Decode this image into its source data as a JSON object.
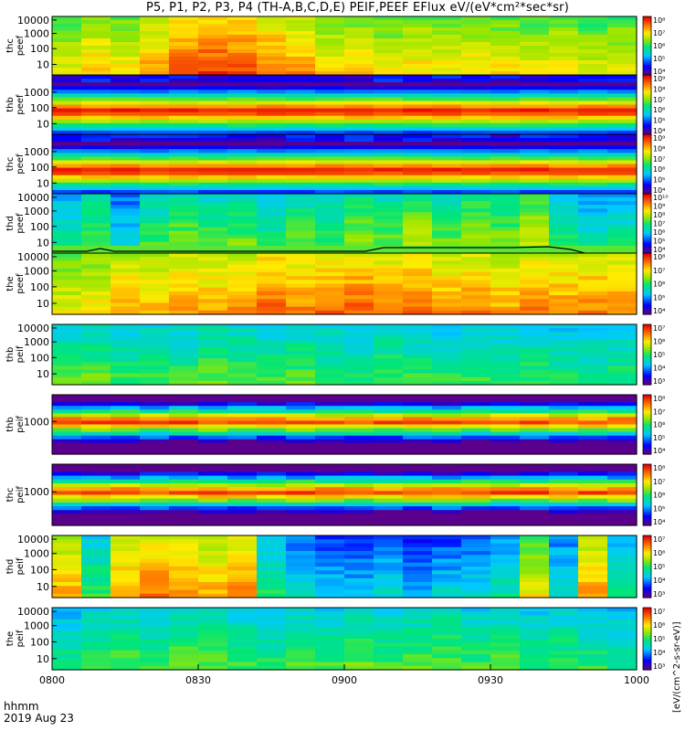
{
  "title": "P5, P1, P2, P3, P4 (TH-A,B,C,D,E) PEIF,PEEF EFlux eV/(eV*cm²*sec*sr)",
  "time_axis": {
    "label_line1": "hhmm",
    "label_line2": "2019 Aug 23",
    "ticks": [
      "0800",
      "0830",
      "0900",
      "0930",
      "1000"
    ]
  },
  "colorbar_label": "[eV/(cm^2-s-sr-eV)]",
  "chart_data": [
    {
      "type": "heatmap",
      "ylabel": [
        "thc",
        "peef"
      ],
      "yticks": [
        "10000",
        "1000",
        "100",
        "10"
      ],
      "cbar_ticks": [
        "10⁴",
        "10⁵",
        "10⁶",
        "10⁷",
        "10⁸"
      ],
      "levels": [
        0.62,
        0.68,
        0.64,
        0.72,
        0.8,
        0.84,
        0.82,
        0.78,
        0.74,
        0.66,
        0.66,
        0.62,
        0.66,
        0.64,
        0.66,
        0.64,
        0.62,
        0.64,
        0.6,
        0.62
      ]
    },
    {
      "type": "heatmap",
      "ylabel": [
        "thb",
        "peef"
      ],
      "yticks": [
        "1000",
        "100",
        "10"
      ],
      "cbar_ticks": [
        "10⁴",
        "10⁵",
        "10⁶",
        "10⁷",
        "10⁸",
        "10⁹"
      ],
      "levels": [
        0.5,
        0.5,
        0.5,
        0.5,
        0.5,
        0.5,
        0.5,
        0.5,
        0.5,
        0.5,
        0.5,
        0.5,
        0.5,
        0.5,
        0.5,
        0.5,
        0.5,
        0.5,
        0.5,
        0.5
      ]
    },
    {
      "type": "heatmap",
      "ylabel": [
        "thc",
        "peef"
      ],
      "yticks": [
        "1000",
        "100",
        "10"
      ],
      "cbar_ticks": [
        "10⁴",
        "10⁵",
        "10⁶",
        "10⁷",
        "10⁸",
        "10⁹"
      ],
      "levels": [
        0.5,
        0.5,
        0.5,
        0.5,
        0.5,
        0.5,
        0.5,
        0.5,
        0.5,
        0.5,
        0.5,
        0.5,
        0.5,
        0.5,
        0.5,
        0.5,
        0.5,
        0.5,
        0.5,
        0.5
      ]
    },
    {
      "type": "heatmap",
      "ylabel": [
        "thd",
        "peef"
      ],
      "yticks": [
        "10000",
        "1000",
        "100",
        "10"
      ],
      "cbar_ticks": [
        "10⁴",
        "10⁵",
        "10⁶",
        "10⁷",
        "10⁸",
        "10⁹",
        "10¹⁰"
      ],
      "levels": [
        0.4,
        0.48,
        0.32,
        0.46,
        0.52,
        0.48,
        0.5,
        0.42,
        0.5,
        0.46,
        0.54,
        0.5,
        0.58,
        0.5,
        0.56,
        0.52,
        0.6,
        0.44,
        0.36,
        0.4
      ]
    },
    {
      "type": "heatmap",
      "ylabel": [
        "the",
        "peef"
      ],
      "yticks": [
        "10000",
        "1000",
        "100",
        "10"
      ],
      "cbar_ticks": [
        "10⁴",
        "10⁵",
        "10⁶",
        "10⁷",
        "10⁸"
      ],
      "levels": [
        0.62,
        0.66,
        0.72,
        0.7,
        0.74,
        0.72,
        0.74,
        0.8,
        0.76,
        0.78,
        0.8,
        0.76,
        0.78,
        0.74,
        0.76,
        0.72,
        0.76,
        0.74,
        0.76,
        0.74
      ]
    },
    {
      "type": "heatmap",
      "ylabel": [
        "thb",
        "peif"
      ],
      "yticks": [
        "10000",
        "1000",
        "100",
        "10"
      ],
      "cbar_ticks": [
        "10³",
        "10⁴",
        "10⁵",
        "10⁶",
        "10⁷"
      ],
      "levels": [
        0.46,
        0.48,
        0.44,
        0.46,
        0.44,
        0.48,
        0.46,
        0.44,
        0.46,
        0.44,
        0.42,
        0.46,
        0.44,
        0.42,
        0.44,
        0.42,
        0.44,
        0.42,
        0.4,
        0.42
      ]
    },
    {
      "type": "heatmap",
      "ylabel": [
        "thb",
        "peif"
      ],
      "yticks": [
        "1000"
      ],
      "cbar_ticks": [
        "10⁴",
        "10⁵",
        "10⁶",
        "10⁷",
        "10⁸"
      ],
      "levels": [
        0.5,
        0.5,
        0.5,
        0.5,
        0.5,
        0.5,
        0.5,
        0.5,
        0.5,
        0.5,
        0.5,
        0.5,
        0.5,
        0.5,
        0.5,
        0.5,
        0.5,
        0.5,
        0.5,
        0.5
      ]
    },
    {
      "type": "heatmap",
      "ylabel": [
        "thc",
        "peif"
      ],
      "yticks": [
        "1000"
      ],
      "cbar_ticks": [
        "10⁴",
        "10⁵",
        "10⁶",
        "10⁷",
        "10⁸"
      ],
      "levels": [
        0.5,
        0.5,
        0.5,
        0.5,
        0.5,
        0.5,
        0.5,
        0.5,
        0.5,
        0.5,
        0.5,
        0.5,
        0.5,
        0.5,
        0.5,
        0.5,
        0.5,
        0.5,
        0.5,
        0.5
      ]
    },
    {
      "type": "heatmap",
      "ylabel": [
        "thd",
        "peif"
      ],
      "yticks": [
        "10000",
        "1000",
        "100",
        "10"
      ],
      "cbar_ticks": [
        "10³",
        "10⁴",
        "10⁵",
        "10⁶",
        "10⁷"
      ],
      "levels": [
        0.7,
        0.44,
        0.72,
        0.78,
        0.74,
        0.7,
        0.76,
        0.4,
        0.32,
        0.28,
        0.26,
        0.3,
        0.24,
        0.28,
        0.3,
        0.36,
        0.62,
        0.34,
        0.72,
        0.4
      ]
    },
    {
      "type": "heatmap",
      "ylabel": [
        "the",
        "peif"
      ],
      "yticks": [
        "10000",
        "1000",
        "100",
        "10"
      ],
      "cbar_ticks": [
        "10³",
        "10⁴",
        "10⁵",
        "10⁶",
        "10⁷"
      ],
      "levels": [
        0.4,
        0.44,
        0.46,
        0.44,
        0.48,
        0.46,
        0.44,
        0.42,
        0.46,
        0.44,
        0.48,
        0.44,
        0.46,
        0.48,
        0.44,
        0.46,
        0.42,
        0.44,
        0.42,
        0.4
      ]
    }
  ]
}
